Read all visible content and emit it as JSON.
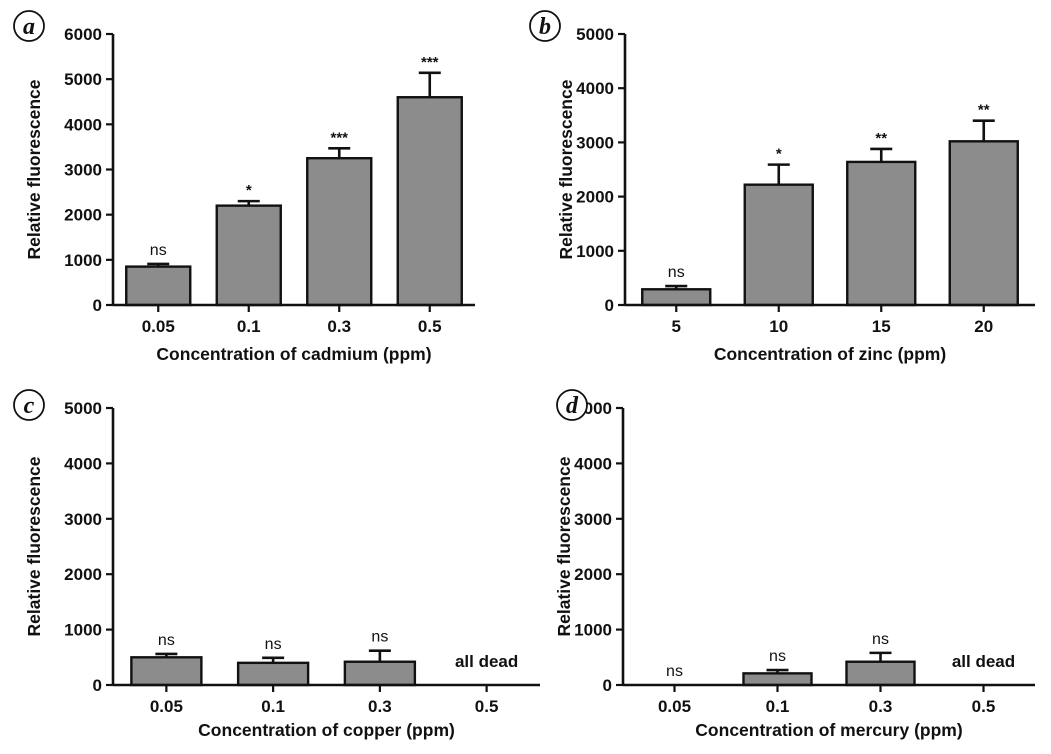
{
  "chart_data": [
    {
      "type": "bar",
      "panel_label": "a",
      "categories": [
        "0.05",
        "0.1",
        "0.3",
        "0.5"
      ],
      "values": [
        850,
        2200,
        3250,
        4600
      ],
      "errors": [
        60,
        100,
        220,
        540
      ],
      "significance": [
        "ns",
        "*",
        "***",
        "***"
      ],
      "notes": [
        "",
        "",
        "",
        ""
      ],
      "xlabel": "Concentration of cadmium (ppm)",
      "ylabel": "Relative fluorescence",
      "ylim": [
        0,
        6000
      ],
      "yticks": [
        "0",
        "1000",
        "2000",
        "3000",
        "4000",
        "5000",
        "6000"
      ],
      "bar_color": "#8c8c8c"
    },
    {
      "type": "bar",
      "panel_label": "b",
      "categories": [
        "5",
        "10",
        "15",
        "20"
      ],
      "values": [
        290,
        2220,
        2640,
        3020
      ],
      "errors": [
        60,
        370,
        240,
        380
      ],
      "significance": [
        "ns",
        "*",
        "**",
        "**"
      ],
      "notes": [
        "",
        "",
        "",
        ""
      ],
      "xlabel": "Concentration of zinc (ppm)",
      "ylabel": "Relative fluorescence",
      "ylim": [
        0,
        5000
      ],
      "yticks": [
        "0",
        "1000",
        "2000",
        "3000",
        "4000",
        "5000"
      ],
      "bar_color": "#8c8c8c"
    },
    {
      "type": "bar",
      "panel_label": "c",
      "categories": [
        "0.05",
        "0.1",
        "0.3",
        "0.5"
      ],
      "values": [
        500,
        400,
        420,
        null
      ],
      "errors": [
        60,
        90,
        200,
        null
      ],
      "significance": [
        "ns",
        "ns",
        "ns",
        ""
      ],
      "notes": [
        "",
        "",
        "",
        "all dead"
      ],
      "xlabel": "Concentration of copper (ppm)",
      "ylabel": "Relative fluorescence",
      "ylim": [
        0,
        5000
      ],
      "yticks": [
        "0",
        "1000",
        "2000",
        "3000",
        "4000",
        "5000"
      ],
      "bar_color": "#8c8c8c"
    },
    {
      "type": "bar",
      "panel_label": "d",
      "categories": [
        "0.05",
        "0.1",
        "0.3",
        "0.5"
      ],
      "values": [
        0,
        210,
        420,
        null
      ],
      "errors": [
        0,
        60,
        160,
        null
      ],
      "significance": [
        "ns",
        "ns",
        "ns",
        ""
      ],
      "notes": [
        "",
        "",
        "",
        "all dead"
      ],
      "xlabel": "Concentration of mercury (ppm)",
      "ylabel": "Relative fluorescence",
      "ylim": [
        0,
        5000
      ],
      "yticks": [
        "0",
        "1000",
        "2000",
        "3000",
        "4000",
        "5000"
      ],
      "bar_color": "#8c8c8c"
    }
  ]
}
